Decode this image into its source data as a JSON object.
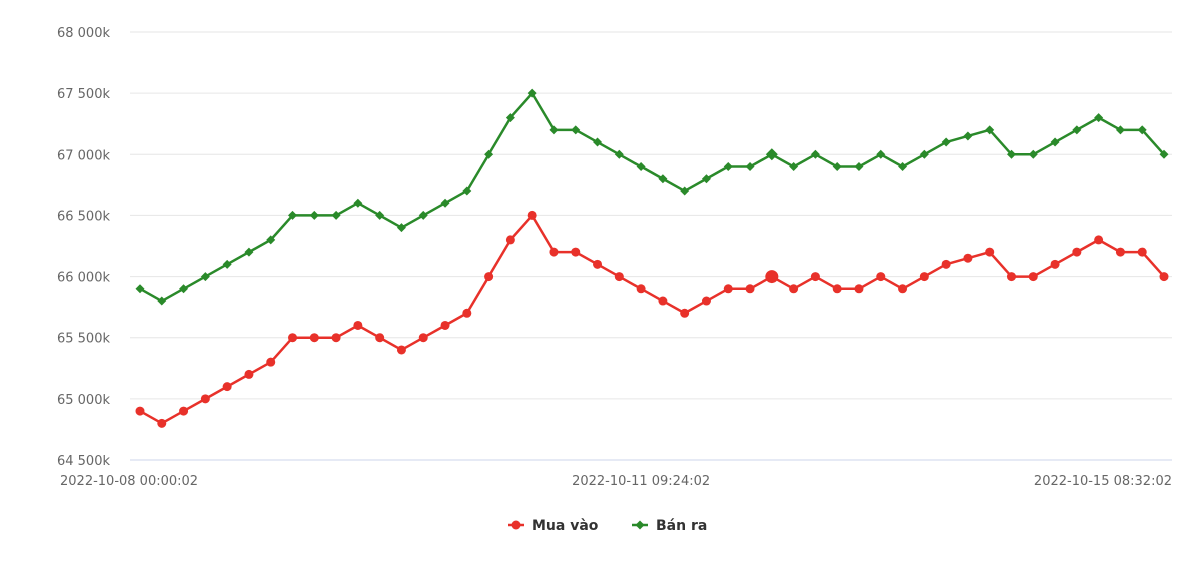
{
  "chart_data": {
    "type": "line",
    "title": "",
    "xlabel": "",
    "ylabel": "",
    "ylim": [
      64500,
      68000
    ],
    "y_ticks": [
      64500,
      65000,
      65500,
      66000,
      66500,
      67000,
      67500,
      68000
    ],
    "y_tick_labels": [
      "64 500k",
      "65 000k",
      "65 500k",
      "66 000k",
      "66 500k",
      "67 000k",
      "67 500k",
      "68 000k"
    ],
    "x_tick_labels": [
      {
        "index": 0,
        "label": "2022-10-08 00:00:02"
      },
      {
        "index": 23,
        "label": "2022-10-11 09:24:02"
      },
      {
        "index": 47,
        "label": "2022-10-15 08:32:02"
      }
    ],
    "grid": true,
    "legend_position": "bottom-center",
    "highlight_index": 29,
    "series": [
      {
        "name": "Mua vào",
        "color": "#e8312a",
        "marker": "circle",
        "values": [
          64900,
          64800,
          64900,
          65000,
          65100,
          65200,
          65300,
          65500,
          65500,
          65500,
          65600,
          65500,
          65400,
          65500,
          65600,
          65700,
          66000,
          66300,
          66500,
          66200,
          66200,
          66100,
          66000,
          65900,
          65800,
          65700,
          65800,
          65900,
          65900,
          66000,
          65900,
          66000,
          65900,
          65900,
          66000,
          65900,
          66000,
          66100,
          66150,
          66200,
          66000,
          66000,
          66100,
          66200,
          66300,
          66200,
          66200,
          66000
        ]
      },
      {
        "name": "Bán ra",
        "color": "#2a8a2a",
        "marker": "diamond",
        "values": [
          65900,
          65800,
          65900,
          66000,
          66100,
          66200,
          66300,
          66500,
          66500,
          66500,
          66600,
          66500,
          66400,
          66500,
          66600,
          66700,
          67000,
          67300,
          67500,
          67200,
          67200,
          67100,
          67000,
          66900,
          66800,
          66700,
          66800,
          66900,
          66900,
          67000,
          66900,
          67000,
          66900,
          66900,
          67000,
          66900,
          67000,
          67100,
          67150,
          67200,
          67000,
          67000,
          67100,
          67200,
          67300,
          67200,
          67200,
          67000
        ]
      }
    ]
  }
}
